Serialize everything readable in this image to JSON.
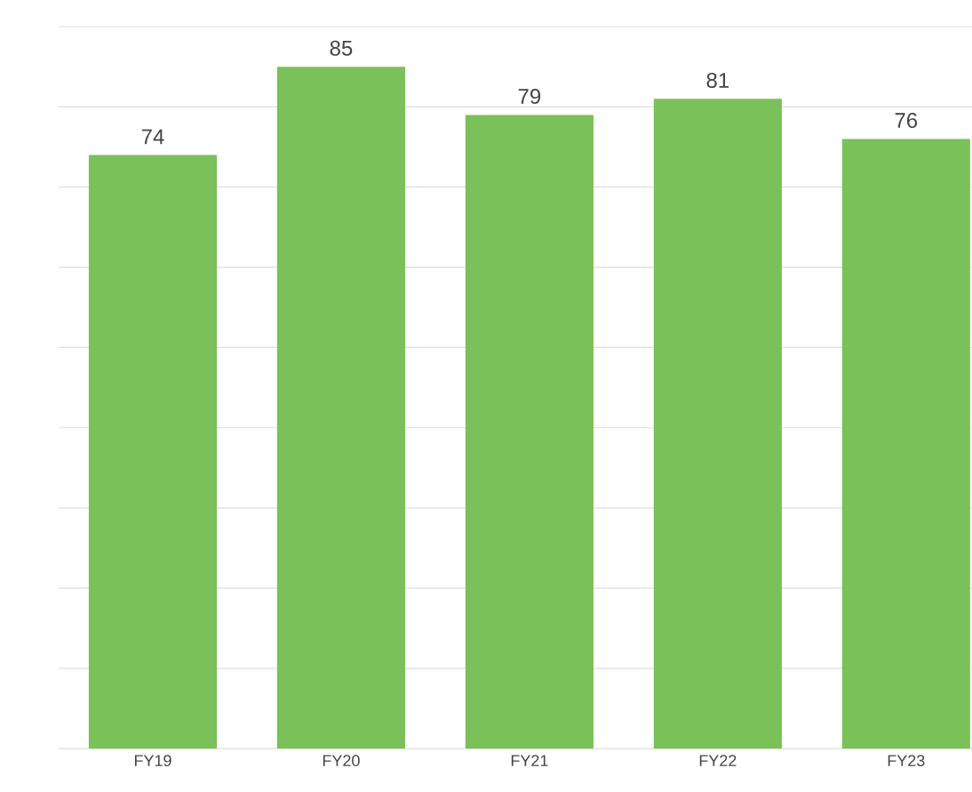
{
  "chart_data": {
    "type": "bar",
    "categories": [
      "FY19",
      "FY20",
      "FY21",
      "FY22",
      "FY23"
    ],
    "values": [
      74,
      85,
      79,
      81,
      76
    ],
    "color": "#7ac159",
    "ylim": [
      0,
      90
    ],
    "yticks": [
      {
        "value": 0,
        "label": null
      },
      {
        "value": 10,
        "label": null
      },
      {
        "value": 20,
        "label": null
      },
      {
        "value": 30,
        "label": null
      },
      {
        "value": 40,
        "label": null
      },
      {
        "value": 50,
        "label": null
      },
      {
        "value": 60,
        "label": null
      },
      {
        "value": 70,
        "label": null
      },
      {
        "value": 80,
        "label": null
      },
      {
        "value": 90,
        "label": null
      }
    ],
    "grid": "y",
    "data_labels": true,
    "tick_labels": "x"
  }
}
